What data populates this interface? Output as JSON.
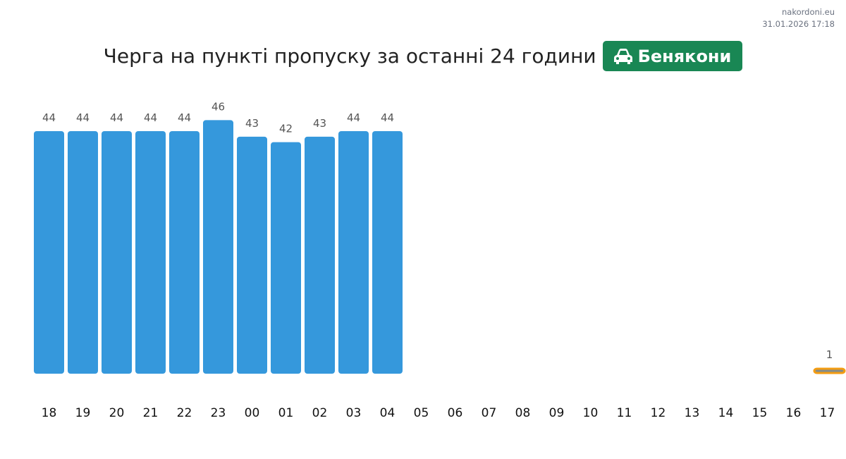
{
  "site": {
    "name": "nakordoni.eu",
    "timestamp": "31.01.2026 17:18"
  },
  "header": {
    "title": "Черга на пункті пропуску за останні 24 години",
    "checkpoint": "Бенякони",
    "checkpoint_icon": "car-icon",
    "badge_color": "#198754"
  },
  "chart_data": {
    "type": "bar",
    "title": "Черга на пункті пропуску за останні 24 години",
    "categories": [
      "18",
      "19",
      "20",
      "21",
      "22",
      "23",
      "00",
      "01",
      "02",
      "03",
      "04",
      "05",
      "06",
      "07",
      "08",
      "09",
      "10",
      "11",
      "12",
      "13",
      "14",
      "15",
      "16",
      "17"
    ],
    "values": [
      44,
      44,
      44,
      44,
      44,
      46,
      43,
      42,
      43,
      44,
      44,
      null,
      null,
      null,
      null,
      null,
      null,
      null,
      null,
      null,
      null,
      null,
      null,
      1
    ],
    "data_labels": true,
    "bar_color": "#3598dc",
    "current_bar": {
      "category": "17",
      "fill": "#808b8d",
      "border": "#f39c12"
    },
    "grid": false
  }
}
